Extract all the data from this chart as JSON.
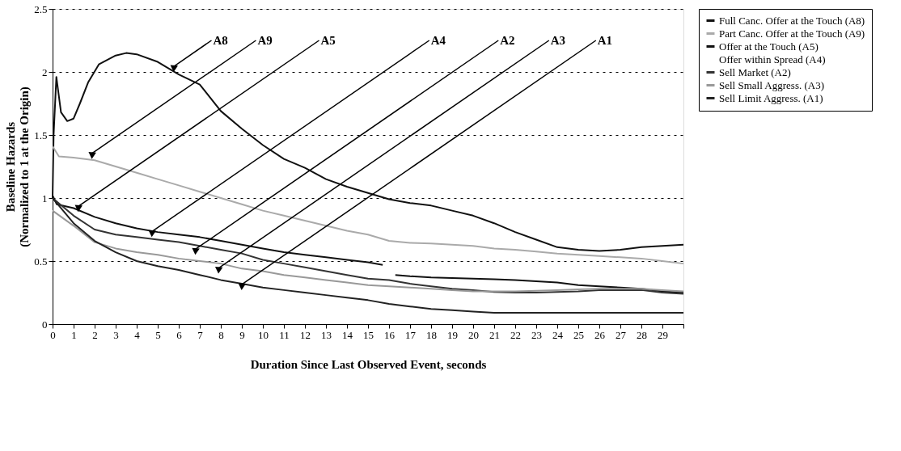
{
  "chart_data": {
    "type": "line",
    "xlabel": "Duration Since Last Observed Event, seconds",
    "ylabel": "Baseline Hazards\n(Normalized to 1 at the Origin)",
    "xlim": [
      0,
      30
    ],
    "ylim": [
      0,
      2.5
    ],
    "xticks": [
      0,
      1,
      2,
      3,
      4,
      5,
      6,
      7,
      8,
      9,
      10,
      11,
      12,
      13,
      14,
      15,
      16,
      17,
      18,
      19,
      20,
      21,
      22,
      23,
      24,
      25,
      26,
      27,
      28,
      29,
      {
        "value": 30,
        "label": null
      }
    ],
    "yticks": [
      0,
      0.5,
      1,
      1.5,
      2,
      2.5
    ],
    "grid": "y",
    "legend": "right",
    "marker": "none",
    "line_style": "solid",
    "series": [
      {
        "name": "Full Canc. Offer at the Touch (A8)",
        "color": "#111111",
        "x": [
          0,
          0.05,
          0.18,
          0.4,
          0.7,
          1,
          1.3,
          1.7,
          2.2,
          3,
          3.5,
          4,
          5,
          6,
          7,
          8,
          9,
          10,
          11,
          12,
          13,
          14,
          15,
          16,
          17,
          18,
          19,
          20,
          21,
          22,
          23,
          24,
          25,
          26,
          27,
          28,
          29,
          30
        ],
        "values": [
          1.0,
          1.5,
          1.96,
          1.68,
          1.61,
          1.63,
          1.75,
          1.92,
          2.06,
          2.13,
          2.15,
          2.14,
          2.08,
          1.98,
          1.9,
          1.69,
          1.55,
          1.42,
          1.31,
          1.24,
          1.15,
          1.09,
          1.04,
          0.99,
          0.96,
          0.94,
          0.9,
          0.86,
          0.8,
          0.73,
          0.67,
          0.61,
          0.59,
          0.58,
          0.59,
          0.61,
          0.62,
          0.63
        ]
      },
      {
        "name": "Part Canc. Offer at the Touch (A9)",
        "color": "#aaaaaa",
        "x": [
          0,
          0.3,
          1,
          2,
          3,
          4,
          5,
          6,
          7,
          8,
          9,
          10,
          11,
          12,
          13,
          14,
          15,
          16,
          17,
          18,
          19,
          20,
          21,
          22,
          23,
          24,
          25,
          26,
          27,
          28,
          29,
          30
        ],
        "values": [
          1.41,
          1.33,
          1.32,
          1.3,
          1.25,
          1.2,
          1.15,
          1.1,
          1.05,
          1.0,
          0.95,
          0.9,
          0.86,
          0.82,
          0.78,
          0.74,
          0.71,
          0.66,
          0.645,
          0.64,
          0.63,
          0.62,
          0.6,
          0.59,
          0.575,
          0.56,
          0.55,
          0.54,
          0.53,
          0.52,
          0.5,
          0.48
        ]
      },
      {
        "name": "Offer at the Touch (A5)",
        "color": "#111111",
        "x": [
          0,
          0.2,
          1,
          2,
          3,
          4,
          5,
          6,
          7,
          8,
          9,
          10,
          11,
          12,
          13,
          14,
          15,
          15.7,
          16,
          16.3,
          17,
          18,
          19,
          20,
          21,
          22,
          23,
          24,
          25,
          26,
          27,
          28,
          29,
          30
        ],
        "values": [
          1.02,
          0.95,
          0.92,
          0.85,
          0.8,
          0.76,
          0.73,
          0.71,
          0.69,
          0.66,
          0.63,
          0.6,
          0.57,
          0.55,
          0.53,
          0.51,
          0.49,
          0.47,
          null,
          0.39,
          0.38,
          0.37,
          0.365,
          0.36,
          0.355,
          0.35,
          0.34,
          0.33,
          0.31,
          0.3,
          0.29,
          0.28,
          0.26,
          0.25
        ]
      },
      {
        "name": "Offer within Spread (A4)"
      },
      {
        "name": "Sell Market (A2)",
        "color": "#333333",
        "x": [
          0,
          1,
          2,
          3,
          4,
          5,
          6,
          7,
          8,
          9,
          10,
          11,
          12,
          13,
          14,
          15,
          16,
          17,
          18,
          19,
          20,
          21,
          22,
          23,
          24,
          25,
          26,
          27,
          28,
          29,
          30
        ],
        "values": [
          1.0,
          0.86,
          0.75,
          0.71,
          0.69,
          0.67,
          0.65,
          0.62,
          0.59,
          0.56,
          0.51,
          0.48,
          0.45,
          0.42,
          0.39,
          0.36,
          0.35,
          0.32,
          0.3,
          0.28,
          0.27,
          0.255,
          0.25,
          0.25,
          0.255,
          0.26,
          0.27,
          0.27,
          0.27,
          0.25,
          0.24
        ]
      },
      {
        "name": "Sell Small Aggress. (A3)",
        "color": "#999999",
        "x": [
          0,
          1,
          2,
          3,
          4,
          5,
          6,
          7,
          8,
          9,
          10,
          11,
          12,
          13,
          14,
          15,
          16,
          17,
          18,
          19,
          20,
          21,
          22,
          23,
          24,
          25,
          26,
          27,
          28,
          29,
          30
        ],
        "values": [
          0.9,
          0.78,
          0.65,
          0.6,
          0.57,
          0.55,
          0.52,
          0.5,
          0.48,
          0.44,
          0.42,
          0.39,
          0.37,
          0.35,
          0.33,
          0.31,
          0.3,
          0.29,
          0.28,
          0.27,
          0.26,
          0.26,
          0.26,
          0.265,
          0.27,
          0.275,
          0.28,
          0.28,
          0.28,
          0.27,
          0.26
        ]
      },
      {
        "name": "Sell Limit Aggress. (A1)",
        "color": "#222222",
        "x": [
          0,
          1,
          2,
          3,
          4,
          5,
          6,
          7,
          8,
          9,
          10,
          11,
          12,
          13,
          14,
          15,
          16,
          17,
          18,
          19,
          20,
          21,
          22,
          23,
          24,
          25,
          26,
          27,
          28,
          29,
          30
        ],
        "values": [
          1.0,
          0.8,
          0.66,
          0.57,
          0.5,
          0.46,
          0.43,
          0.39,
          0.35,
          0.32,
          0.29,
          0.27,
          0.25,
          0.23,
          0.21,
          0.19,
          0.16,
          0.14,
          0.12,
          0.11,
          0.1,
          0.09,
          0.09,
          0.09,
          0.09,
          0.09,
          0.09,
          0.09,
          0.09,
          0.09,
          0.09
        ]
      }
    ],
    "annotations": [
      {
        "text": "A8",
        "x": 5.73,
        "y": 2.04
      },
      {
        "text": "A9",
        "x": 1.84,
        "y": 1.35
      },
      {
        "text": "A5",
        "x": 1.19,
        "y": 0.93
      },
      {
        "text": "A4",
        "x": 4.69,
        "y": 0.73
      },
      {
        "text": "A2",
        "x": 6.76,
        "y": 0.59
      },
      {
        "text": "A3",
        "x": 7.86,
        "y": 0.44
      },
      {
        "text": "A1",
        "x": 8.96,
        "y": 0.31
      }
    ]
  }
}
